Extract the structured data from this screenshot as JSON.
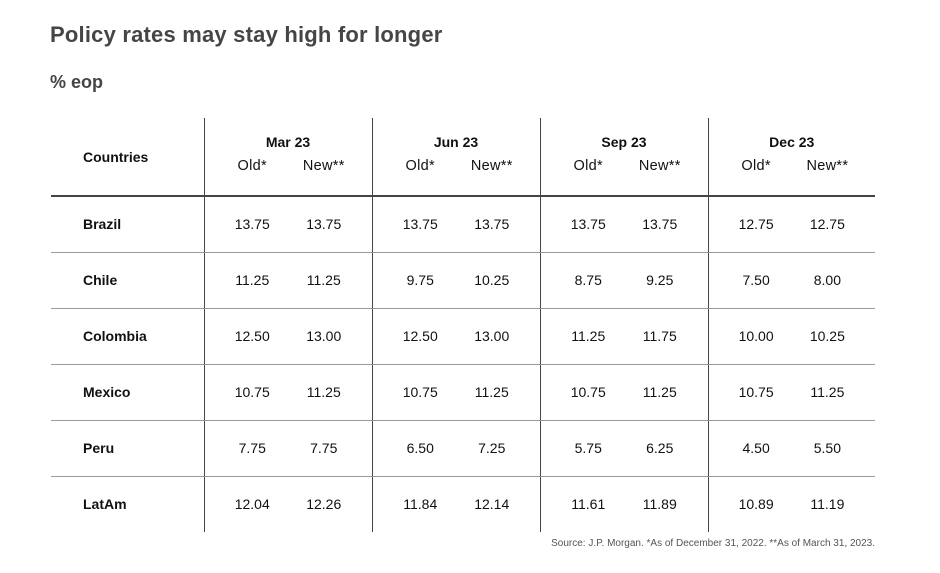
{
  "title": "Policy rates may stay high for longer",
  "subtitle": "% eop",
  "source": "Source: J.P. Morgan. *As of December 31, 2022. **As of March 31, 2023.",
  "chart_data": {
    "type": "table",
    "row_header": "Countries",
    "periods": [
      {
        "label": "Mar 23",
        "old_label": "Old*",
        "new_label": "New**"
      },
      {
        "label": "Jun 23",
        "old_label": "Old*",
        "new_label": "New**"
      },
      {
        "label": "Sep 23",
        "old_label": "Old*",
        "new_label": "New**"
      },
      {
        "label": "Dec 23",
        "old_label": "Old*",
        "new_label": "New**"
      }
    ],
    "rows": [
      {
        "country": "Brazil",
        "values": [
          [
            "13.75",
            "13.75"
          ],
          [
            "13.75",
            "13.75"
          ],
          [
            "13.75",
            "13.75"
          ],
          [
            "12.75",
            "12.75"
          ]
        ]
      },
      {
        "country": "Chile",
        "values": [
          [
            "11.25",
            "11.25"
          ],
          [
            "9.75",
            "10.25"
          ],
          [
            "8.75",
            "9.25"
          ],
          [
            "7.50",
            "8.00"
          ]
        ]
      },
      {
        "country": "Colombia",
        "values": [
          [
            "12.50",
            "13.00"
          ],
          [
            "12.50",
            "13.00"
          ],
          [
            "11.25",
            "11.75"
          ],
          [
            "10.00",
            "10.25"
          ]
        ]
      },
      {
        "country": "Mexico",
        "values": [
          [
            "10.75",
            "11.25"
          ],
          [
            "10.75",
            "11.25"
          ],
          [
            "10.75",
            "11.25"
          ],
          [
            "10.75",
            "11.25"
          ]
        ]
      },
      {
        "country": "Peru",
        "values": [
          [
            "7.75",
            "7.75"
          ],
          [
            "6.50",
            "7.25"
          ],
          [
            "5.75",
            "6.25"
          ],
          [
            "4.50",
            "5.50"
          ]
        ]
      },
      {
        "country": "LatAm",
        "values": [
          [
            "12.04",
            "12.26"
          ],
          [
            "11.84",
            "12.14"
          ],
          [
            "11.61",
            "11.89"
          ],
          [
            "10.89",
            "11.19"
          ]
        ]
      }
    ]
  }
}
